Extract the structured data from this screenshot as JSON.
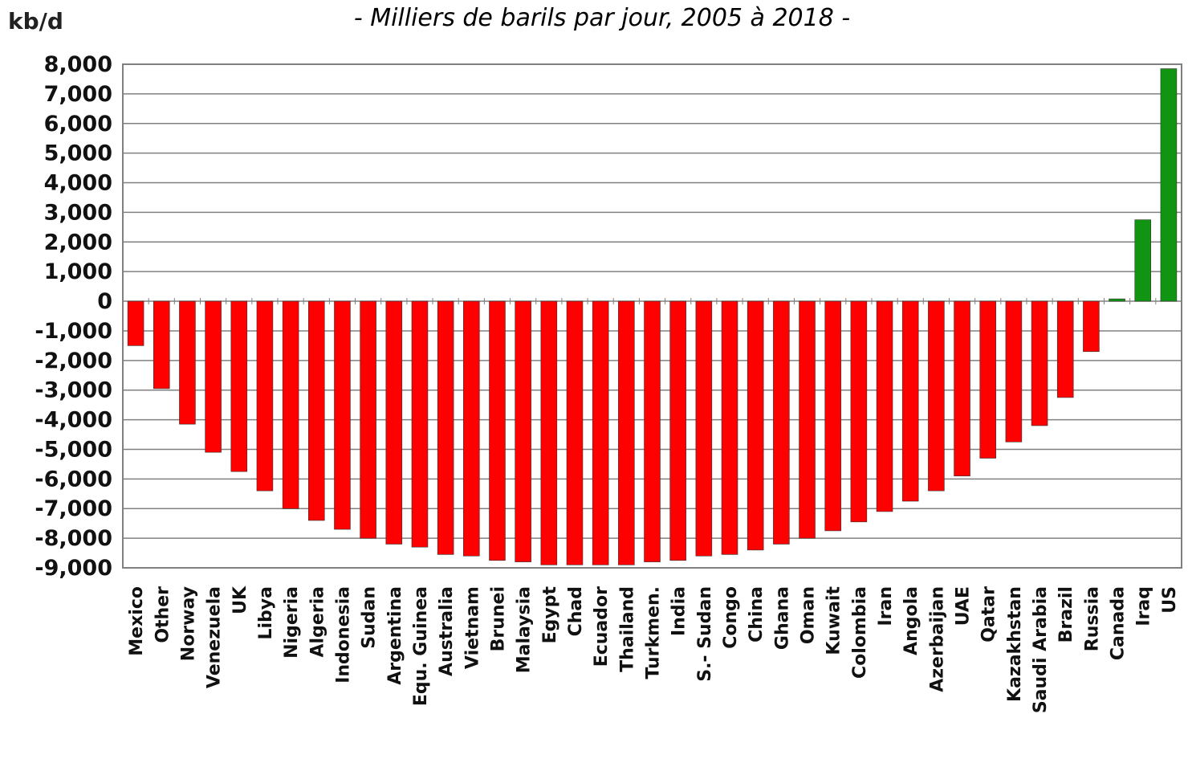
{
  "chart_data": {
    "type": "bar",
    "title": "- Milliers de barils par jour, 2005 à 2018 -",
    "ylabel": "kb/d",
    "xlabel": "",
    "ylim": [
      -9000,
      8000
    ],
    "yticks": [
      8000,
      7000,
      6000,
      5000,
      4000,
      3000,
      2000,
      1000,
      0,
      -1000,
      -2000,
      -3000,
      -4000,
      -5000,
      -6000,
      -7000,
      -8000,
      -9000
    ],
    "ytick_labels": [
      "8,000",
      "7,000",
      "6,000",
      "5,000",
      "4,000",
      "3,000",
      "2,000",
      "1,000",
      "0",
      "-1,000",
      "-2,000",
      "-3,000",
      "-4,000",
      "-5,000",
      "-6,000",
      "-7,000",
      "-8,000",
      "-9,000"
    ],
    "grid": true,
    "categories": [
      "Mexico",
      "Other",
      "Norway",
      "Venezuela",
      "UK",
      "Libya",
      "Nigeria",
      "Algeria",
      "Indonesia",
      "Sudan",
      "Argentina",
      "Equ. Guinea",
      "Australia",
      "Vietnam",
      "Brunei",
      "Malaysia",
      "Egypt",
      "Chad",
      "Ecuador",
      "Thailand",
      "Turkmen.",
      "India",
      "S.- Sudan",
      "Congo",
      "China",
      "Ghana",
      "Oman",
      "Kuwait",
      "Colombia",
      "Iran",
      "Angola",
      "Azerbaijan",
      "UAE",
      "Qatar",
      "Kazakhstan",
      "Saudi Arabia",
      "Brazil",
      "Russia",
      "Canada",
      "Iraq",
      "US"
    ],
    "values": [
      -1500,
      -2950,
      -4150,
      -5100,
      -5750,
      -6400,
      -7000,
      -7400,
      -7700,
      -8000,
      -8200,
      -8300,
      -8550,
      -8600,
      -8750,
      -8800,
      -8900,
      -8900,
      -8900,
      -8900,
      -8800,
      -8750,
      -8600,
      -8550,
      -8400,
      -8200,
      -8000,
      -7750,
      -7450,
      -7100,
      -6750,
      -6400,
      -5900,
      -5300,
      -4750,
      -4200,
      -3250,
      -1700,
      80,
      2750,
      7850
    ],
    "colors": {
      "negative": "#ff0000",
      "positive": "#119411",
      "title": "#2e74b5",
      "grid": "#808080"
    }
  }
}
